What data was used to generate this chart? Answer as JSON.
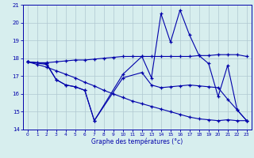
{
  "xlabel": "Graphe des températures (°c)",
  "background_color": "#d7eeee",
  "grid_color": "#b0c8d0",
  "line_color": "#0000aa",
  "xlim": [
    -0.5,
    23.5
  ],
  "ylim": [
    14,
    21
  ],
  "yticks": [
    14,
    15,
    16,
    17,
    18,
    19,
    20,
    21
  ],
  "xticks": [
    0,
    1,
    2,
    3,
    4,
    5,
    6,
    7,
    8,
    9,
    10,
    11,
    12,
    13,
    14,
    15,
    16,
    17,
    18,
    19,
    20,
    21,
    22,
    23
  ],
  "series": [
    {
      "x": [
        0,
        1,
        2,
        3,
        4,
        5,
        6,
        7,
        8,
        9,
        10,
        11,
        12,
        13,
        14,
        15,
        16,
        17,
        18,
        19,
        20,
        21,
        22,
        23
      ],
      "y": [
        17.8,
        17.75,
        17.75,
        17.8,
        17.85,
        17.9,
        17.9,
        17.95,
        18.0,
        18.05,
        18.1,
        18.1,
        18.1,
        18.1,
        18.1,
        18.1,
        18.1,
        18.1,
        18.15,
        18.15,
        18.2,
        18.2,
        18.2,
        18.1
      ]
    },
    {
      "x": [
        0,
        1,
        2,
        3,
        4,
        5,
        6,
        7,
        8,
        9,
        10,
        11,
        12,
        13,
        14,
        15,
        16,
        17,
        18,
        19,
        20,
        21,
        22,
        23
      ],
      "y": [
        17.8,
        17.65,
        17.5,
        17.3,
        17.1,
        16.9,
        16.65,
        16.45,
        16.2,
        16.0,
        15.8,
        15.6,
        15.45,
        15.3,
        15.15,
        15.0,
        14.85,
        14.7,
        14.6,
        14.55,
        14.5,
        14.55,
        14.5,
        14.5
      ]
    },
    {
      "x": [
        0,
        2,
        3,
        4,
        5,
        6,
        7,
        10,
        12,
        13,
        14,
        15,
        16,
        17,
        18,
        19,
        20,
        21,
        22,
        23
      ],
      "y": [
        17.8,
        17.7,
        16.8,
        16.5,
        16.4,
        16.2,
        14.5,
        17.1,
        18.1,
        16.9,
        20.5,
        18.9,
        20.7,
        19.3,
        18.15,
        17.7,
        15.85,
        17.6,
        15.1,
        14.5
      ]
    },
    {
      "x": [
        0,
        2,
        3,
        4,
        5,
        6,
        7,
        10,
        12,
        13,
        14,
        15,
        16,
        17,
        18,
        19,
        20,
        21,
        22,
        23
      ],
      "y": [
        17.8,
        17.65,
        16.8,
        16.5,
        16.4,
        16.2,
        14.5,
        16.9,
        17.2,
        16.5,
        16.35,
        16.4,
        16.45,
        16.5,
        16.45,
        16.4,
        16.35,
        15.7,
        15.1,
        14.5
      ]
    }
  ]
}
